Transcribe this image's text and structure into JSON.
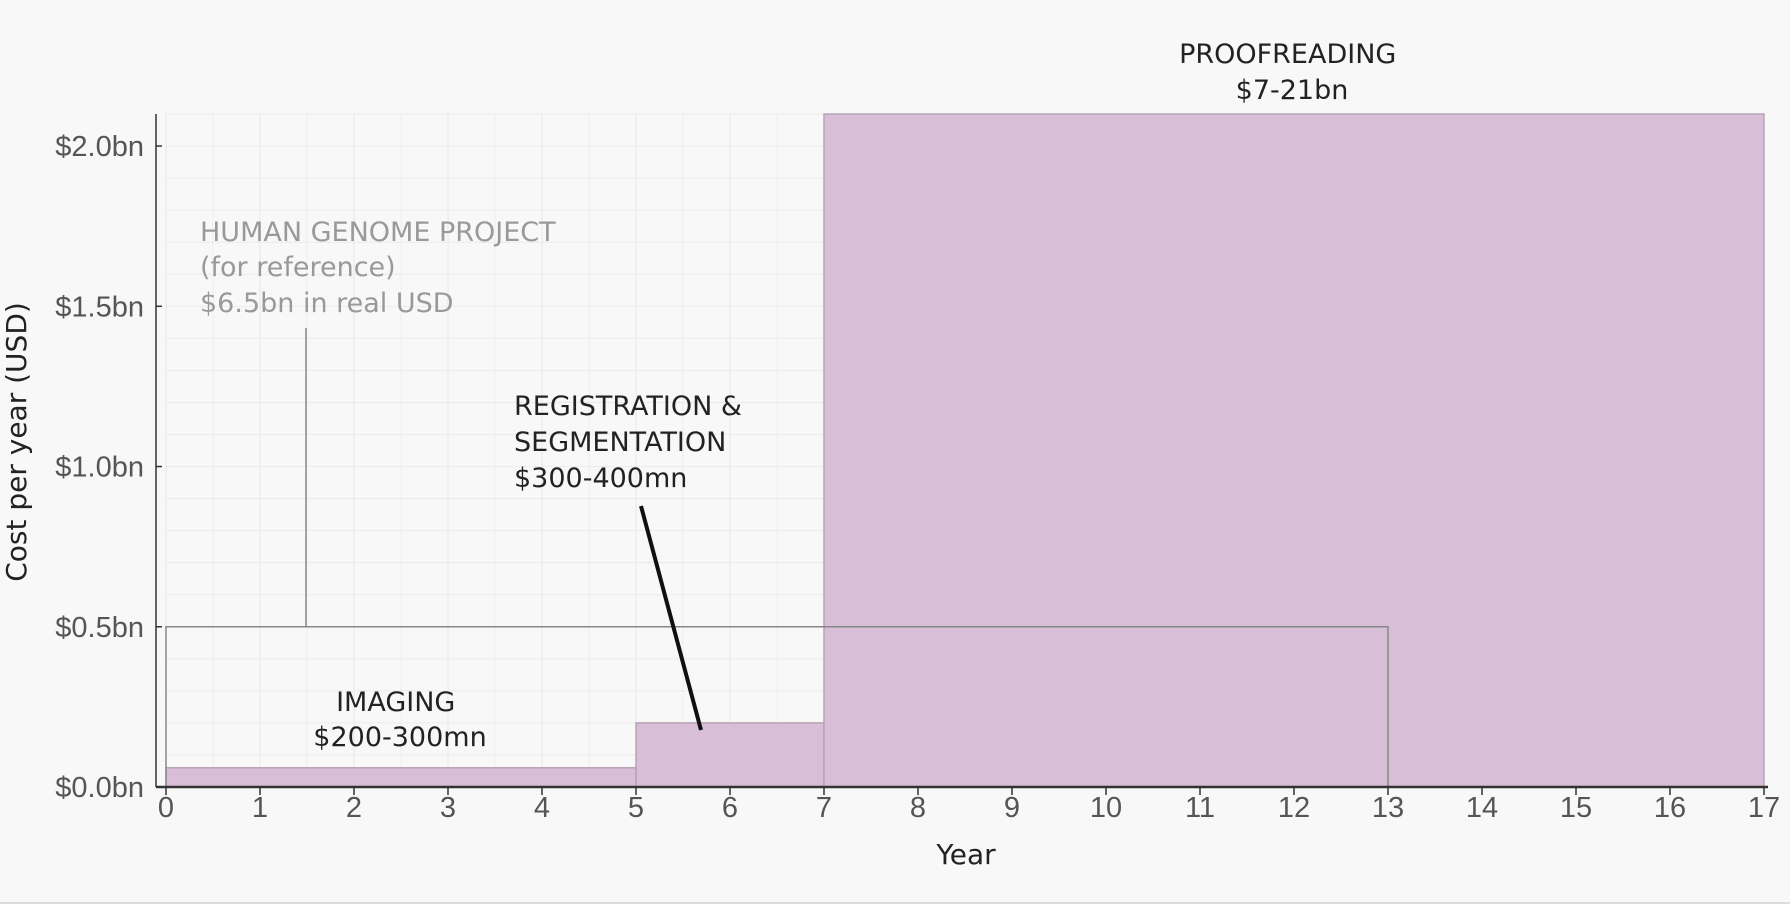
{
  "chart_data": {
    "type": "bar",
    "xlabel": "Year",
    "ylabel": "Cost per year (USD)",
    "xlim": [
      0,
      17
    ],
    "ylim": [
      0,
      2.0
    ],
    "x_ticks": [
      "0",
      "1",
      "2",
      "3",
      "4",
      "5",
      "6",
      "7",
      "8",
      "9",
      "10",
      "11",
      "12",
      "13",
      "14",
      "15",
      "16",
      "17"
    ],
    "y_ticks": [
      {
        "value": 0.0,
        "label": "$0.0bn"
      },
      {
        "value": 0.5,
        "label": "$0.5bn"
      },
      {
        "value": 1.0,
        "label": "$1.0bn"
      },
      {
        "value": 1.5,
        "label": "$1.5bn"
      },
      {
        "value": 2.0,
        "label": "$2.0bn"
      }
    ],
    "grid": true,
    "series": [
      {
        "key": "phases",
        "style": "filled",
        "color": "#d8bed6",
        "segments": [
          {
            "key": "imaging",
            "x_start": 0,
            "x_end": 5,
            "value": 0.06
          },
          {
            "key": "registration",
            "x_start": 5,
            "x_end": 7,
            "value": 0.2
          },
          {
            "key": "proofreading",
            "x_start": 7,
            "x_end": 17,
            "value": 2.1
          }
        ]
      },
      {
        "key": "reference",
        "style": "outline",
        "color": "#888888",
        "segments": [
          {
            "key": "hgp",
            "x_start": 0,
            "x_end": 13,
            "value": 0.5
          }
        ]
      }
    ],
    "annotations": {
      "proofreading": {
        "lines": [
          "PROOFREADING",
          "$7-21bn"
        ]
      },
      "hgp": {
        "lines": [
          "HUMAN GENOME PROJECT",
          "(for reference)",
          "$6.5bn in real USD"
        ]
      },
      "registration": {
        "lines": [
          "REGISTRATION &",
          "SEGMENTATION",
          "$300-400mn"
        ]
      },
      "imaging": {
        "lines": [
          "IMAGING",
          "$200-300mn"
        ]
      }
    }
  },
  "colors": {
    "bar_fill": "#d8bed6",
    "bar_stroke": "#b8a3b7",
    "reference_line": "#888888",
    "reference_text": "#999999",
    "axis": "#333333",
    "grid": "#e8e8e8",
    "background": "#f8f8f8"
  }
}
